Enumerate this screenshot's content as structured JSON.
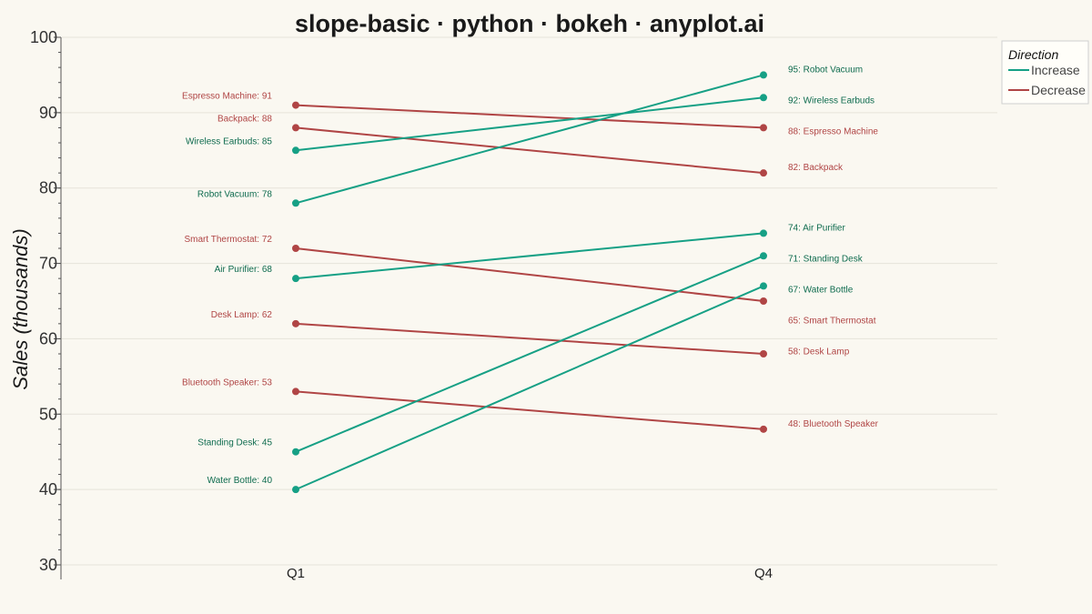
{
  "colors": {
    "increase": "#16A085",
    "decrease": "#B04545",
    "increase_text": "#0E6B4E",
    "decrease_text": "#B04545"
  },
  "chart_data": {
    "type": "line",
    "title": "slope-basic · python · bokeh · anyplot.ai",
    "ylabel": "Sales (thousands)",
    "categories": [
      "Q1",
      "Q4"
    ],
    "ylim": [
      30,
      100
    ],
    "yticks": [
      "30",
      "40",
      "50",
      "60",
      "70",
      "80",
      "90",
      "100"
    ],
    "legend": {
      "title": "Direction",
      "placement": "top-right",
      "items": [
        {
          "label": "Increase",
          "direction": "increase"
        },
        {
          "label": "Decrease",
          "direction": "decrease"
        }
      ]
    },
    "series": [
      {
        "name": "Espresso Machine",
        "values": [
          91,
          88
        ],
        "direction": "decrease",
        "q1_label": "Espresso Machine: 91",
        "q4_label": "88: Espresso Machine"
      },
      {
        "name": "Backpack",
        "values": [
          88,
          82
        ],
        "direction": "decrease",
        "q1_label": "Backpack: 88",
        "q4_label": "82: Backpack"
      },
      {
        "name": "Wireless Earbuds",
        "values": [
          85,
          92
        ],
        "direction": "increase",
        "q1_label": "Wireless Earbuds: 85",
        "q4_label": "92: Wireless Earbuds"
      },
      {
        "name": "Robot Vacuum",
        "values": [
          78,
          95
        ],
        "direction": "increase",
        "q1_label": "Robot Vacuum: 78",
        "q4_label": "95: Robot Vacuum"
      },
      {
        "name": "Smart Thermostat",
        "values": [
          72,
          65
        ],
        "direction": "decrease",
        "q1_label": "Smart Thermostat: 72",
        "q4_label": "65: Smart Thermostat"
      },
      {
        "name": "Air Purifier",
        "values": [
          68,
          74
        ],
        "direction": "increase",
        "q1_label": "Air Purifier: 68",
        "q4_label": "74: Air Purifier"
      },
      {
        "name": "Desk Lamp",
        "values": [
          62,
          58
        ],
        "direction": "decrease",
        "q1_label": "Desk Lamp: 62",
        "q4_label": "58: Desk Lamp"
      },
      {
        "name": "Bluetooth Speaker",
        "values": [
          53,
          48
        ],
        "direction": "decrease",
        "q1_label": "Bluetooth Speaker: 53",
        "q4_label": "48: Bluetooth Speaker"
      },
      {
        "name": "Standing Desk",
        "values": [
          45,
          71
        ],
        "direction": "increase",
        "q1_label": "Standing Desk: 45",
        "q4_label": "71: Standing Desk"
      },
      {
        "name": "Water Bottle",
        "values": [
          40,
          67
        ],
        "direction": "increase",
        "q1_label": "Water Bottle: 40",
        "q4_label": "67: Water Bottle"
      }
    ]
  }
}
